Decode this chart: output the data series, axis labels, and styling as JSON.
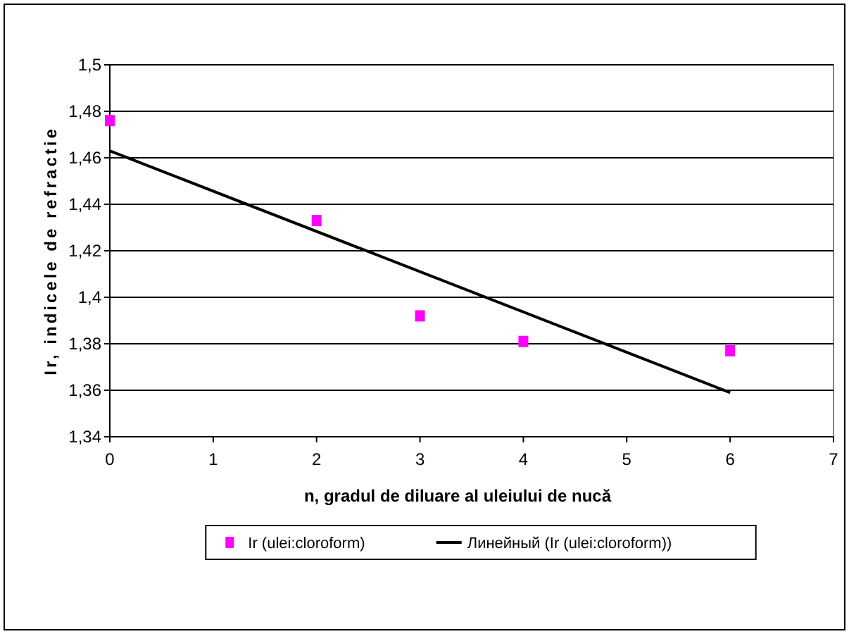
{
  "chart_data": {
    "type": "scatter",
    "xlabel": "n, gradul de diluare al uleiului de nucă",
    "ylabel": "Ir, indicele de refractie",
    "series": [
      {
        "name": "Ir (ulei:cloroform)",
        "color": "#ff00ff",
        "marker": "square",
        "x": [
          0,
          2,
          3,
          4,
          6
        ],
        "values": [
          1.476,
          1.433,
          1.392,
          1.381,
          1.377
        ]
      },
      {
        "name": "Линейный (Ir (ulei:cloroform))",
        "type": "line",
        "color": "#000000",
        "marker": "none",
        "line_style": "solid",
        "x": [
          0,
          6
        ],
        "values": [
          1.463,
          1.359
        ]
      }
    ],
    "xlim": [
      0,
      7
    ],
    "xticks": [
      0,
      1,
      2,
      3,
      4,
      5,
      6,
      7
    ],
    "ylim": [
      1.34,
      1.5
    ],
    "yticks": [
      {
        "value": 1.34,
        "label": "1,34"
      },
      {
        "value": 1.36,
        "label": "1,36"
      },
      {
        "value": 1.38,
        "label": "1,38"
      },
      {
        "value": 1.4,
        "label": "1,4"
      },
      {
        "value": 1.42,
        "label": "1,42"
      },
      {
        "value": 1.44,
        "label": "1,44"
      },
      {
        "value": 1.46,
        "label": "1,46"
      },
      {
        "value": 1.48,
        "label": "1,48"
      },
      {
        "value": 1.5,
        "label": "1,5"
      }
    ],
    "grid": "y",
    "legend": "bottom"
  }
}
